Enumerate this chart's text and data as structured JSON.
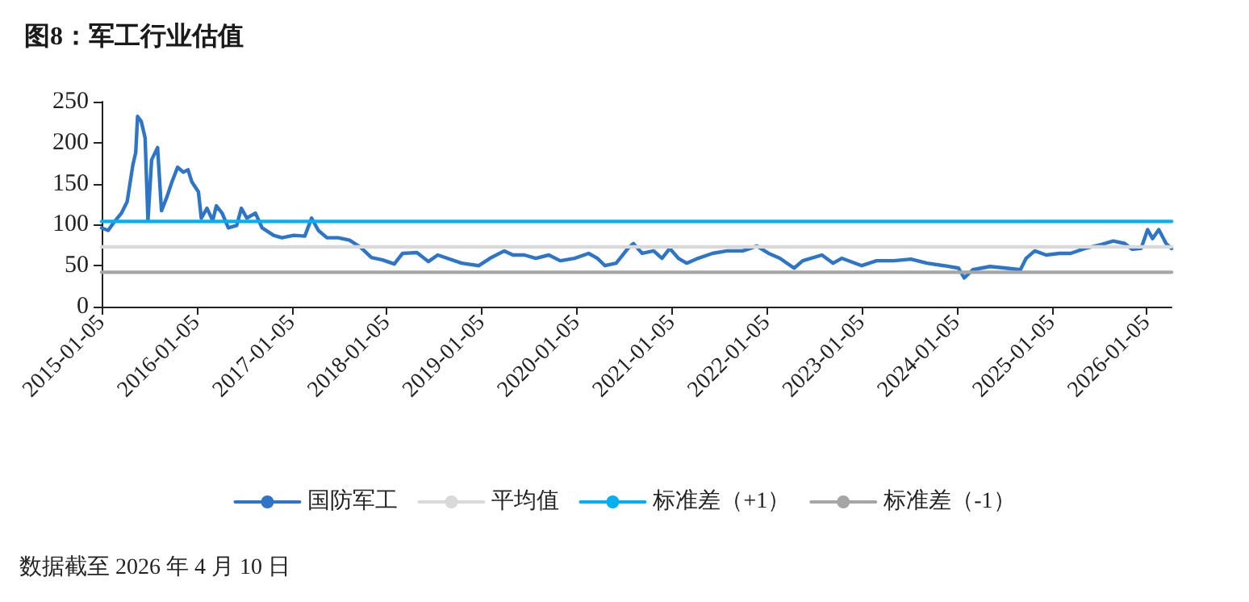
{
  "chart_data": {
    "type": "line",
    "title": "图8：军工行业估值",
    "annotations": [
      "数据截至 2026 年 4 月 10 日"
    ],
    "xlim": [
      "2015-01-05",
      "2026-04-10"
    ],
    "xticks": [
      "2015-01-05",
      "2016-01-05",
      "2017-01-05",
      "2018-01-05",
      "2019-01-05",
      "2020-01-05",
      "2021-01-05",
      "2022-01-05",
      "2023-01-05",
      "2024-01-05",
      "2025-01-05",
      "2026-01-05"
    ],
    "ylim": [
      0,
      250
    ],
    "yticks": [
      0,
      50,
      100,
      150,
      200,
      250
    ],
    "grid": false,
    "legend": "bottom",
    "marker": "none",
    "line_style": "solid",
    "series": [
      {
        "name": "国防军工",
        "color": "#2e75c8",
        "x": [
          "2015-01-05",
          "2015-01-30",
          "2015-02-19",
          "2015-03-22",
          "2015-04-13",
          "2015-05-05",
          "2015-05-16",
          "2015-05-23",
          "2015-06-06",
          "2015-06-21",
          "2015-07-02",
          "2015-07-16",
          "2015-08-08",
          "2015-08-23",
          "2015-09-13",
          "2015-10-02",
          "2015-10-24",
          "2015-11-15",
          "2015-12-03",
          "2015-12-18",
          "2016-01-12",
          "2016-01-23",
          "2016-02-14",
          "2016-03-07",
          "2016-03-21",
          "2016-04-12",
          "2016-05-06",
          "2016-06-07",
          "2016-06-25",
          "2016-07-16",
          "2016-08-18",
          "2016-09-13",
          "2016-10-27",
          "2016-11-28",
          "2017-01-12",
          "2017-02-24",
          "2017-03-22",
          "2017-04-17",
          "2017-05-20",
          "2017-07-02",
          "2017-08-15",
          "2017-09-28",
          "2017-11-07",
          "2017-12-20",
          "2018-02-03",
          "2018-03-07",
          "2018-05-01",
          "2018-06-14",
          "2018-07-20",
          "2018-10-20",
          "2018-12-25",
          "2019-02-06",
          "2019-04-02",
          "2019-05-05",
          "2019-06-18",
          "2019-08-01",
          "2019-09-20",
          "2019-11-03",
          "2019-12-28",
          "2020-02-20",
          "2020-03-25",
          "2020-04-23",
          "2020-06-05",
          "2020-07-20",
          "2020-08-10",
          "2020-09-13",
          "2020-10-27",
          "2020-11-28",
          "2020-12-28",
          "2021-01-30",
          "2021-03-03",
          "2021-04-16",
          "2021-06-10",
          "2021-08-05",
          "2021-10-05",
          "2021-11-28",
          "2022-01-12",
          "2022-02-24",
          "2022-04-20",
          "2022-05-23",
          "2022-08-05",
          "2022-09-17",
          "2022-10-20",
          "2023-01-05",
          "2023-03-03",
          "2023-05-08",
          "2023-07-13",
          "2023-09-13",
          "2023-11-17",
          "2024-01-12",
          "2024-02-03",
          "2024-03-07",
          "2024-05-12",
          "2024-07-13",
          "2024-09-06",
          "2024-09-28",
          "2024-10-31",
          "2024-12-14",
          "2025-02-03",
          "2025-03-18",
          "2025-05-12",
          "2025-07-16",
          "2025-08-29",
          "2025-10-12",
          "2025-11-10",
          "2025-12-14",
          "2026-01-08",
          "2026-01-27",
          "2026-02-20",
          "2026-03-20",
          "2026-04-10"
        ],
        "values": [
          96,
          93,
          102,
          114,
          128,
          173,
          188,
          232,
          226,
          206,
          105,
          179,
          194,
          117,
          134,
          152,
          170,
          164,
          167,
          152,
          140,
          108,
          120,
          105,
          123,
          114,
          96,
          99,
          120,
          108,
          114,
          96,
          87,
          84,
          87,
          86,
          108,
          93,
          84,
          84,
          81,
          72,
          60,
          57,
          52,
          65,
          66,
          55,
          63,
          53,
          50,
          59,
          68,
          63,
          63,
          59,
          63,
          56,
          59,
          65,
          59,
          50,
          53,
          71,
          77,
          65,
          68,
          59,
          71,
          59,
          53,
          59,
          65,
          68,
          68,
          74,
          65,
          59,
          47,
          56,
          63,
          53,
          59,
          50,
          56,
          56,
          58,
          53,
          50,
          47,
          35,
          45,
          49,
          47,
          45,
          59,
          68,
          63,
          65,
          65,
          71,
          76,
          80,
          77,
          70,
          71,
          94,
          83,
          94,
          77,
          71
        ]
      },
      {
        "name": "平均值",
        "color": "#d9d9d9",
        "x": [
          "2015-01-05",
          "2026-04-10"
        ],
        "values": [
          73,
          73
        ]
      },
      {
        "name": "标准差（+1）",
        "color": "#00b0f0",
        "x": [
          "2015-01-05",
          "2026-04-10"
        ],
        "values": [
          104,
          104
        ]
      },
      {
        "name": "标准差（-1）",
        "color": "#a6a6a6",
        "x": [
          "2015-01-05",
          "2026-04-10"
        ],
        "values": [
          42,
          42
        ]
      }
    ]
  }
}
